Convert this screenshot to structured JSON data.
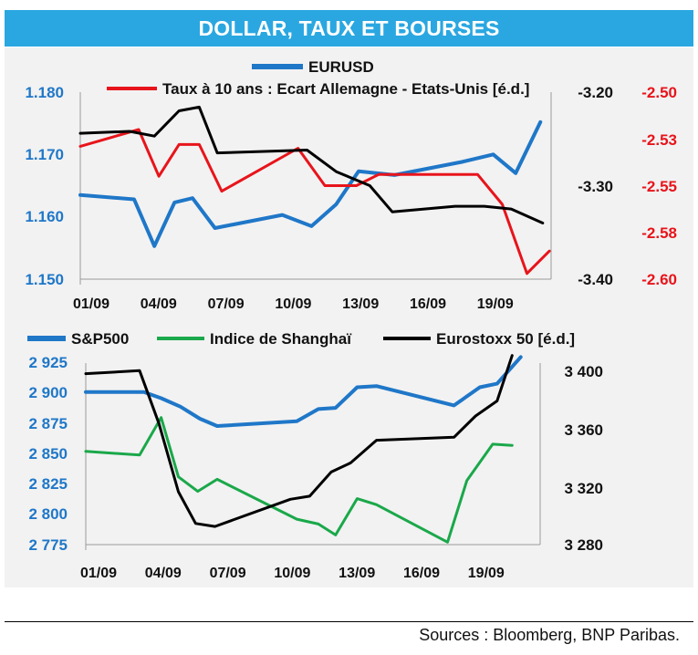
{
  "title": "DOLLAR, TAUX ET BOURSES",
  "footer": "Sources : Bloomberg, BNP Paribas.",
  "colors": {
    "blue": "#1f77c8",
    "red": "#e8141b",
    "green": "#1aa84a",
    "black": "#000000",
    "banner": "#2aa7e1"
  },
  "chart_data": [
    {
      "type": "line",
      "x_ticks": [
        "01/09",
        "04/09",
        "07/09",
        "10/09",
        "13/09",
        "16/09",
        "19/09"
      ],
      "y_left": {
        "ticks": [
          "1.180",
          "1.170",
          "1.160",
          "1.150"
        ],
        "ylim": [
          1.15,
          1.18
        ]
      },
      "y_mid": {
        "ticks": [
          "-3.20",
          "-3.30",
          "-3.40"
        ],
        "ylim": [
          -3.4,
          -3.2
        ]
      },
      "y_right": {
        "ticks": [
          "-2.50",
          "-2.53",
          "-2.55",
          "-2.58",
          "-2.60"
        ],
        "ylim": [
          -2.6,
          -2.5
        ]
      },
      "series": [
        {
          "name": "EURUSD",
          "axis": "left",
          "color": "#1f77c8",
          "width": 4,
          "points": [
            [
              0,
              1.1635
            ],
            [
              2.4,
              1.1628
            ],
            [
              3.3,
              1.1553
            ],
            [
              4.2,
              1.1623
            ],
            [
              5,
              1.163
            ],
            [
              6,
              1.1582
            ],
            [
              9,
              1.1603
            ],
            [
              10.3,
              1.1585
            ],
            [
              11.4,
              1.162
            ],
            [
              12.4,
              1.1673
            ],
            [
              14,
              1.1667
            ],
            [
              17,
              1.1688
            ],
            [
              18.4,
              1.17
            ],
            [
              19.4,
              1.167
            ],
            [
              20.5,
              1.1752
            ]
          ]
        },
        {
          "name": "Taux à 10 ans : Ecart Allemagne - Etats-Unis [é.d.]",
          "axis": "right",
          "color": "#e8141b",
          "width": 3,
          "points": [
            [
              0,
              -2.529
            ],
            [
              2.6,
              -2.52
            ],
            [
              3.5,
              -2.545
            ],
            [
              4.4,
              -2.528
            ],
            [
              5.3,
              -2.528
            ],
            [
              6.3,
              -2.553
            ],
            [
              9.7,
              -2.53
            ],
            [
              10.9,
              -2.55
            ],
            [
              12.3,
              -2.55
            ],
            [
              13.3,
              -2.544
            ],
            [
              17.7,
              -2.544
            ],
            [
              18.8,
              -2.56
            ],
            [
              19.9,
              -2.597
            ],
            [
              20.9,
              -2.585
            ]
          ]
        },
        {
          "name": "",
          "axis": "mid",
          "color": "#000000",
          "width": 3,
          "points": [
            [
              0,
              -3.244
            ],
            [
              2.2,
              -3.242
            ],
            [
              3.3,
              -3.247
            ],
            [
              4.4,
              -3.22
            ],
            [
              5.3,
              -3.216
            ],
            [
              6.1,
              -3.265
            ],
            [
              10.1,
              -3.262
            ],
            [
              11.4,
              -3.285
            ],
            [
              12.9,
              -3.3
            ],
            [
              13.9,
              -3.328
            ],
            [
              16.7,
              -3.322
            ],
            [
              18,
              -3.322
            ],
            [
              19.2,
              -3.325
            ],
            [
              20.6,
              -3.34
            ]
          ]
        }
      ]
    },
    {
      "type": "line",
      "x_ticks": [
        "01/09",
        "04/09",
        "07/09",
        "10/09",
        "13/09",
        "16/09",
        "19/09"
      ],
      "y_left": {
        "ticks": [
          "2 925",
          "2 900",
          "2 875",
          "2 850",
          "2 825",
          "2 800",
          "2 775"
        ],
        "ylim": [
          2775,
          2925
        ]
      },
      "y_right": {
        "ticks": [
          "3 400",
          "3 360",
          "3 320",
          "3 280"
        ],
        "ylim": [
          3280,
          3400
        ]
      },
      "series": [
        {
          "name": "S&P500",
          "axis": "left",
          "color": "#1f77c8",
          "width": 4,
          "points": [
            [
              0,
              2901
            ],
            [
              2.7,
              2901
            ],
            [
              3.5,
              2896
            ],
            [
              4.4,
              2889
            ],
            [
              5.3,
              2879
            ],
            [
              6.1,
              2873
            ],
            [
              9.8,
              2877
            ],
            [
              10.8,
              2887
            ],
            [
              11.6,
              2888
            ],
            [
              12.6,
              2905
            ],
            [
              13.5,
              2906
            ],
            [
              17.1,
              2890
            ],
            [
              18.3,
              2905
            ],
            [
              19.1,
              2908
            ],
            [
              20.2,
              2930
            ]
          ]
        },
        {
          "name": "Indice de Shanghaï",
          "axis": "left",
          "color": "#1aa84a",
          "width": 3,
          "points": [
            [
              0,
              2852
            ],
            [
              2.5,
              2849
            ],
            [
              3.5,
              2880
            ],
            [
              4.3,
              2831
            ],
            [
              5.2,
              2819
            ],
            [
              6.1,
              2829
            ],
            [
              9.8,
              2796
            ],
            [
              10.8,
              2792
            ],
            [
              11.6,
              2783
            ],
            [
              12.6,
              2813
            ],
            [
              13.5,
              2808
            ],
            [
              16.8,
              2777
            ],
            [
              17.7,
              2828
            ],
            [
              18.9,
              2858
            ],
            [
              19.8,
              2857
            ]
          ]
        },
        {
          "name": "Eurostoxx 50 [é.d.]",
          "axis": "right",
          "color": "#000000",
          "width": 3,
          "points": [
            [
              0,
              3393
            ],
            [
              2.5,
              3395
            ],
            [
              3.4,
              3360
            ],
            [
              4.3,
              3315
            ],
            [
              5.1,
              3294
            ],
            [
              6,
              3292
            ],
            [
              9.5,
              3310
            ],
            [
              10.4,
              3312
            ],
            [
              11.4,
              3328
            ],
            [
              12.3,
              3334
            ],
            [
              13.5,
              3349
            ],
            [
              17.1,
              3351
            ],
            [
              18.1,
              3365
            ],
            [
              19.1,
              3375
            ],
            [
              19.8,
              3405
            ]
          ]
        }
      ]
    }
  ]
}
